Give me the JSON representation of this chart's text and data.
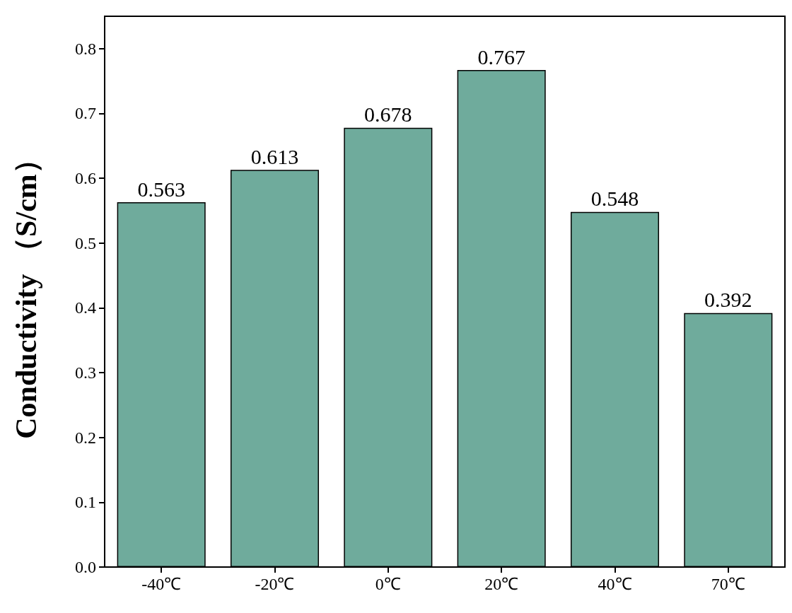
{
  "chart_data": {
    "type": "bar",
    "ylabel": "Conductivity （S/cm）",
    "categories": [
      "-40℃",
      "-20℃",
      "0℃",
      "20℃",
      "40℃",
      "70℃"
    ],
    "values": [
      0.563,
      0.613,
      0.678,
      0.767,
      0.548,
      0.392
    ],
    "color": "#6fab9c",
    "ylim": [
      0,
      0.85
    ],
    "yticks": [
      {
        "value": 0,
        "label": "0.0"
      },
      0.1,
      0.2,
      0.3,
      0.4,
      0.5,
      0.6,
      0.7,
      0.8
    ],
    "data_labels": true,
    "grid": false
  }
}
